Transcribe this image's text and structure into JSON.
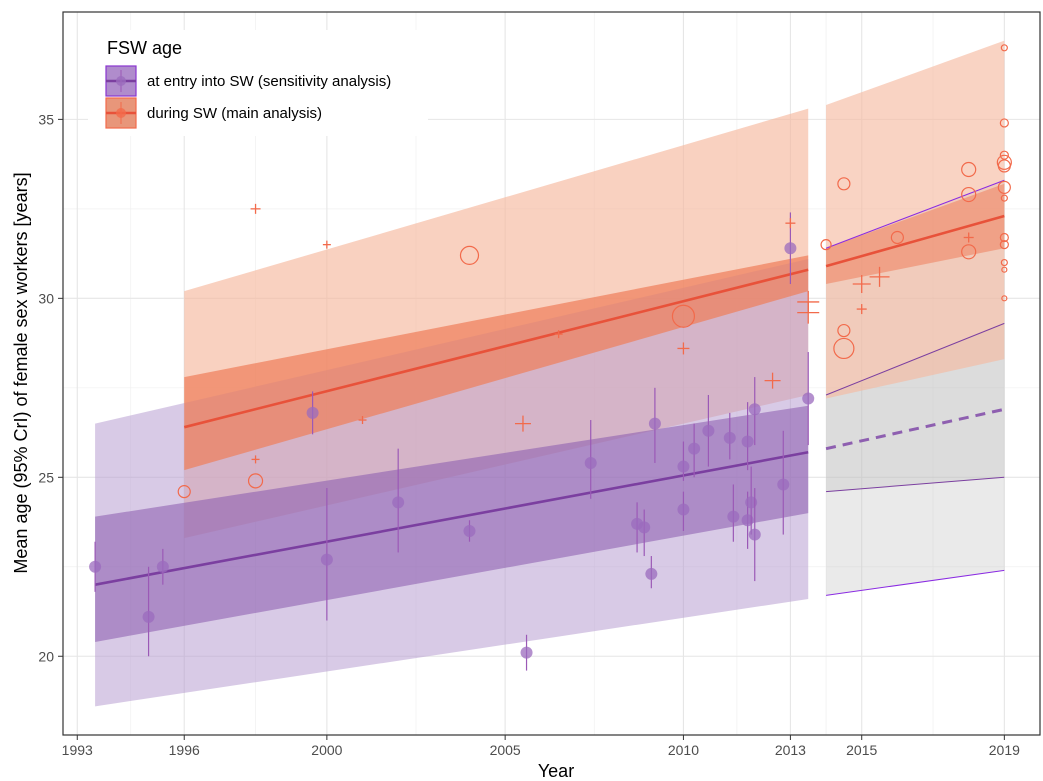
{
  "chart_data": {
    "type": "line",
    "xlabel": "Year",
    "ylabel": "Mean age (95% CrI) of female sex workers [years]",
    "xlim": [
      1992.6,
      2020.0
    ],
    "ylim": [
      17.8,
      38.0
    ],
    "x_ticks": [
      1993,
      1996,
      2000,
      2005,
      2010,
      2013,
      2015,
      2019
    ],
    "y_ticks": [
      20,
      25,
      30,
      35
    ],
    "grid": true,
    "legend": {
      "title": "FSW age",
      "placement": "top-left",
      "entries": [
        {
          "label": "at entry into SW (sensitivity analysis)",
          "color": "#8e44ad"
        },
        {
          "label": "during SW (main analysis)",
          "color": "#f26a4b"
        }
      ]
    },
    "series": [
      {
        "name": "during SW (main analysis)",
        "color": "#e8523a",
        "fit": {
          "x": [
            1996,
            2013.5
          ],
          "y": [
            26.4,
            30.8
          ]
        },
        "ci50": {
          "x": [
            1996,
            2013.5
          ],
          "upper": [
            27.8,
            31.2
          ],
          "lower": [
            25.2,
            30.2
          ]
        },
        "ci95": {
          "x": [
            1996,
            2013.5
          ],
          "upper": [
            30.2,
            35.3
          ],
          "lower": [
            23.3,
            27.3
          ]
        },
        "projection": {
          "x": [
            2014,
            2019
          ],
          "fit": [
            30.9,
            32.3
          ],
          "ci50_upper": [
            31.4,
            33.2
          ],
          "ci50_lower": [
            30.4,
            31.4
          ],
          "ci95_upper": [
            35.4,
            37.2
          ],
          "ci95_lower": [
            27.2,
            28.3
          ]
        },
        "points_circle": [
          {
            "x": 1996,
            "y": 24.6,
            "s": 6
          },
          {
            "x": 1998,
            "y": 24.9,
            "s": 7
          },
          {
            "x": 2004,
            "y": 31.2,
            "s": 9
          },
          {
            "x": 2010,
            "y": 29.5,
            "s": 11
          },
          {
            "x": 2014,
            "y": 31.5,
            "s": 5
          },
          {
            "x": 2014.5,
            "y": 33.2,
            "s": 6
          },
          {
            "x": 2014.5,
            "y": 29.1,
            "s": 6
          },
          {
            "x": 2014.5,
            "y": 28.6,
            "s": 10
          },
          {
            "x": 2016,
            "y": 31.7,
            "s": 6
          },
          {
            "x": 2018,
            "y": 33.6,
            "s": 7
          },
          {
            "x": 2018,
            "y": 32.9,
            "s": 7
          },
          {
            "x": 2018,
            "y": 31.3,
            "s": 7
          },
          {
            "x": 2019,
            "y": 37.0,
            "s": 3
          },
          {
            "x": 2019,
            "y": 34.9,
            "s": 4
          },
          {
            "x": 2019,
            "y": 34.0,
            "s": 4
          },
          {
            "x": 2019,
            "y": 33.8,
            "s": 7
          },
          {
            "x": 2019,
            "y": 33.7,
            "s": 6
          },
          {
            "x": 2019,
            "y": 33.1,
            "s": 6
          },
          {
            "x": 2019,
            "y": 32.8,
            "s": 3
          },
          {
            "x": 2019,
            "y": 31.7,
            "s": 4
          },
          {
            "x": 2019,
            "y": 31.5,
            "s": 4
          },
          {
            "x": 2019,
            "y": 31.0,
            "s": 3
          },
          {
            "x": 2019,
            "y": 30.8,
            "s": 2.5
          },
          {
            "x": 2019,
            "y": 30.0,
            "s": 2.5
          }
        ],
        "points_plus": [
          {
            "x": 1998,
            "y": 32.5,
            "s": 5
          },
          {
            "x": 1998,
            "y": 25.5,
            "s": 4
          },
          {
            "x": 2000,
            "y": 31.5,
            "s": 4
          },
          {
            "x": 2001,
            "y": 26.6,
            "s": 4
          },
          {
            "x": 2005.5,
            "y": 26.5,
            "s": 8
          },
          {
            "x": 2006.5,
            "y": 29.0,
            "s": 4
          },
          {
            "x": 2010,
            "y": 28.6,
            "s": 6
          },
          {
            "x": 2012.5,
            "y": 27.7,
            "s": 8
          },
          {
            "x": 2013,
            "y": 32.1,
            "s": 5
          },
          {
            "x": 2013.5,
            "y": 29.9,
            "s": 11
          },
          {
            "x": 2013.5,
            "y": 29.6,
            "s": 11
          },
          {
            "x": 2015,
            "y": 30.4,
            "s": 9
          },
          {
            "x": 2015,
            "y": 29.7,
            "s": 5
          },
          {
            "x": 2015.5,
            "y": 30.6,
            "s": 10
          },
          {
            "x": 2018,
            "y": 31.7,
            "s": 5
          }
        ]
      },
      {
        "name": "at entry into SW (sensitivity analysis)",
        "color": "#7b3fa0",
        "fit": {
          "x": [
            1993.5,
            2013.5
          ],
          "y": [
            22.0,
            25.7
          ]
        },
        "ci50": {
          "x": [
            1993.5,
            2013.5
          ],
          "upper": [
            23.9,
            27.0
          ],
          "lower": [
            20.4,
            24.0
          ]
        },
        "ci95": {
          "x": [
            1993.5,
            2013.5
          ],
          "upper": [
            26.5,
            31.1
          ],
          "lower": [
            18.6,
            21.6
          ]
        },
        "projection": {
          "x": [
            2014,
            2019
          ],
          "fit": [
            25.8,
            26.9
          ],
          "ci50_upper": [
            27.3,
            29.3
          ],
          "ci50_lower": [
            24.6,
            25.0
          ],
          "ci95_upper": [
            31.4,
            33.3
          ],
          "ci95_lower": [
            21.7,
            22.4
          ]
        },
        "points": [
          {
            "x": 1993.5,
            "y": 22.5,
            "lo": 21.8,
            "hi": 23.2
          },
          {
            "x": 1995,
            "y": 21.1,
            "lo": 20.0,
            "hi": 22.5
          },
          {
            "x": 1995.4,
            "y": 22.5,
            "lo": 22.0,
            "hi": 23.0
          },
          {
            "x": 1999.6,
            "y": 26.8,
            "lo": 26.2,
            "hi": 27.4
          },
          {
            "x": 2000,
            "y": 22.7,
            "lo": 21.0,
            "hi": 24.7
          },
          {
            "x": 2002,
            "y": 24.3,
            "lo": 22.9,
            "hi": 25.8
          },
          {
            "x": 2004,
            "y": 23.5,
            "lo": 23.2,
            "hi": 23.8
          },
          {
            "x": 2005.6,
            "y": 20.1,
            "lo": 19.6,
            "hi": 20.6
          },
          {
            "x": 2007.4,
            "y": 25.4,
            "lo": 24.4,
            "hi": 26.6
          },
          {
            "x": 2008.7,
            "y": 23.7,
            "lo": 22.9,
            "hi": 24.3
          },
          {
            "x": 2008.9,
            "y": 23.6,
            "lo": 22.8,
            "hi": 24.1
          },
          {
            "x": 2009.1,
            "y": 22.3,
            "lo": 21.9,
            "hi": 22.8
          },
          {
            "x": 2009.2,
            "y": 26.5,
            "lo": 25.4,
            "hi": 27.5
          },
          {
            "x": 2010,
            "y": 25.3,
            "lo": 24.9,
            "hi": 26.0
          },
          {
            "x": 2010,
            "y": 24.1,
            "lo": 23.5,
            "hi": 24.6
          },
          {
            "x": 2010.3,
            "y": 25.8,
            "lo": 25.0,
            "hi": 26.5
          },
          {
            "x": 2010.7,
            "y": 26.3,
            "lo": 25.3,
            "hi": 27.3
          },
          {
            "x": 2011.3,
            "y": 26.1,
            "lo": 25.5,
            "hi": 26.8
          },
          {
            "x": 2011.4,
            "y": 23.9,
            "lo": 23.2,
            "hi": 24.8
          },
          {
            "x": 2011.8,
            "y": 26.0,
            "lo": 25.2,
            "hi": 27.1
          },
          {
            "x": 2011.8,
            "y": 23.8,
            "lo": 23.0,
            "hi": 24.6
          },
          {
            "x": 2011.9,
            "y": 24.3,
            "lo": 23.4,
            "hi": 25.3
          },
          {
            "x": 2012,
            "y": 26.9,
            "lo": 25.9,
            "hi": 27.8
          },
          {
            "x": 2012,
            "y": 23.4,
            "lo": 22.1,
            "hi": 24.7
          },
          {
            "x": 2012.8,
            "y": 24.8,
            "lo": 23.4,
            "hi": 26.3
          },
          {
            "x": 2013,
            "y": 31.4,
            "lo": 30.4,
            "hi": 32.4
          },
          {
            "x": 2013.5,
            "y": 27.2,
            "lo": 25.9,
            "hi": 28.5
          }
        ]
      }
    ]
  }
}
